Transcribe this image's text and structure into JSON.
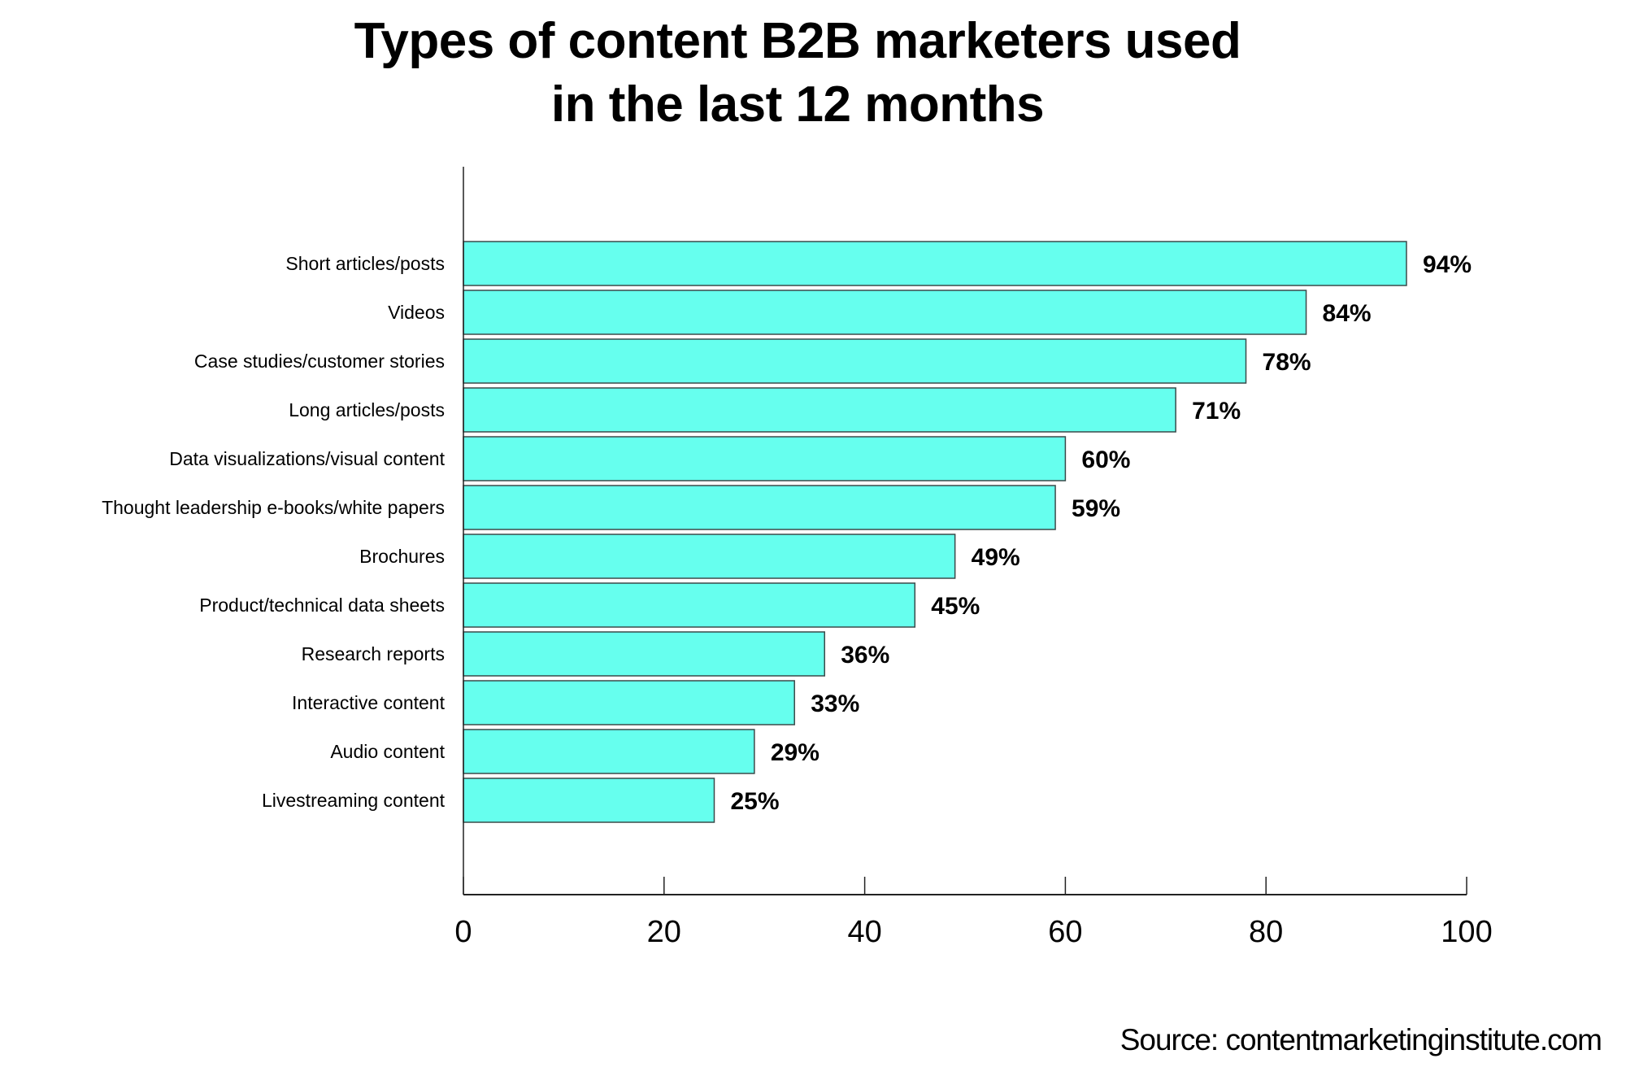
{
  "chart_data": {
    "type": "bar",
    "orientation": "horizontal",
    "title": "Types of content B2B marketers used in the last 12 months",
    "title_lines": [
      "Types of content B2B marketers used",
      "in the last 12 months"
    ],
    "categories": [
      "Short articles/posts",
      "Videos",
      "Case studies/customer stories",
      "Long articles/posts",
      "Data visualizations/visual content",
      "Thought leadership e-books/white papers",
      "Brochures",
      "Product/technical data sheets",
      "Research reports",
      "Interactive content",
      "Audio content",
      "Livestreaming content"
    ],
    "values": [
      94,
      84,
      78,
      71,
      60,
      59,
      49,
      45,
      36,
      33,
      29,
      25
    ],
    "data_labels": [
      "94%",
      "84%",
      "78%",
      "71%",
      "60%",
      "59%",
      "49%",
      "45%",
      "36%",
      "33%",
      "29%",
      "25%"
    ],
    "xlim": [
      0,
      100
    ],
    "xticks": [
      "0",
      "20",
      "40",
      "60",
      "80",
      "100"
    ],
    "xlabel": "",
    "ylabel": "",
    "grid": false,
    "legend": "none",
    "colors": {
      "bar_fill": "#66FFEE",
      "bar_stroke": "#3a4a4a",
      "axis": "#222222",
      "text": "#000000"
    }
  },
  "source": "Source: contentmarketinginstitute.com"
}
